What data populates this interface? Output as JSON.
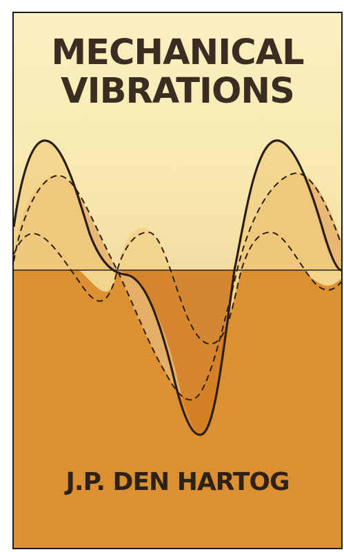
{
  "cover": {
    "title_line1": "MECHANICAL",
    "title_line2": "VIBRATIONS",
    "author": "J.P. DEN HARTOG"
  },
  "palette": {
    "background_light": "#f8eab1",
    "band_light": "#f2d48c",
    "band_mid": "#e7a868",
    "band_dark": "#dc9030",
    "ink": "#2a1e14"
  },
  "illustration": "waves"
}
